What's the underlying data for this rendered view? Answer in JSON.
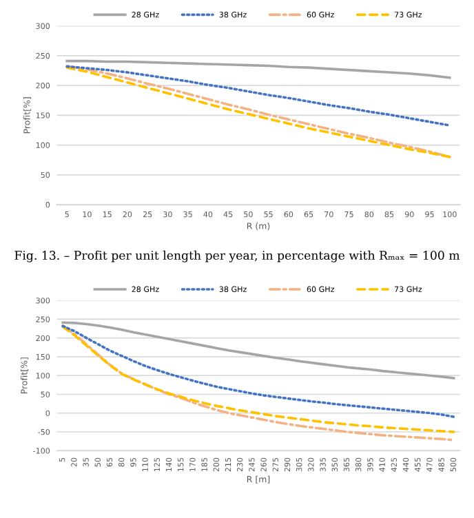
{
  "chart_data": [
    {
      "type": "line",
      "ylabel": "Profit[%]",
      "xlabel": "R (m)",
      "categories": [
        "5",
        "10",
        "15",
        "20",
        "25",
        "30",
        "35",
        "40",
        "45",
        "50",
        "55",
        "60",
        "65",
        "70",
        "75",
        "80",
        "85",
        "90",
        "95",
        "100"
      ],
      "ylim": [
        0,
        300
      ],
      "yticks": [
        0,
        50,
        100,
        150,
        200,
        250,
        300
      ],
      "grid": "y",
      "legend": "top",
      "annotations": [
        "Fig. 13. – Profit per unit length per year, in percentage with Rₘₐₓ = 100 m"
      ],
      "series": [
        {
          "name": "28 GHz",
          "color": "#a5a5a5",
          "line_style": "solid",
          "values": [
            241,
            241,
            240,
            240,
            239,
            238,
            237,
            236,
            235,
            234,
            233,
            231,
            230,
            228,
            226,
            224,
            222,
            220,
            217,
            213
          ]
        },
        {
          "name": "38 GHz",
          "color": "#4472c4",
          "line_style": "dotted",
          "values": [
            232,
            229,
            226,
            222,
            217,
            212,
            207,
            201,
            196,
            190,
            184,
            179,
            173,
            167,
            162,
            156,
            151,
            145,
            139,
            133
          ]
        },
        {
          "name": "60 GHz",
          "color": "#f4b183",
          "line_style": "dashdot",
          "values": [
            232,
            227,
            220,
            212,
            203,
            195,
            186,
            177,
            168,
            160,
            151,
            143,
            135,
            127,
            119,
            112,
            104,
            97,
            89,
            80
          ]
        },
        {
          "name": "73 GHz",
          "color": "#ffc000",
          "line_style": "dashed",
          "values": [
            230,
            223,
            214,
            205,
            196,
            187,
            178,
            169,
            160,
            152,
            144,
            136,
            128,
            121,
            114,
            107,
            100,
            93,
            87,
            80
          ]
        }
      ]
    },
    {
      "type": "line",
      "ylabel": "Profit[%]",
      "xlabel": "R [m]",
      "categories": [
        "5",
        "20",
        "35",
        "50",
        "65",
        "80",
        "95",
        "110",
        "125",
        "140",
        "155",
        "170",
        "185",
        "200",
        "215",
        "230",
        "245",
        "260",
        "275",
        "290",
        "305",
        "320",
        "335",
        "350",
        "365",
        "380",
        "395",
        "410",
        "425",
        "440",
        "455",
        "470",
        "485",
        "500"
      ],
      "ylim": [
        -100,
        300
      ],
      "yticks": [
        -100,
        -50,
        0,
        50,
        100,
        150,
        200,
        250,
        300
      ],
      "grid": "y",
      "legend": "top",
      "series": [
        {
          "name": "28 GHz",
          "color": "#a5a5a5",
          "line_style": "solid",
          "values": [
            241,
            240,
            237,
            233,
            228,
            222,
            215,
            209,
            203,
            197,
            191,
            185,
            179,
            173,
            167,
            162,
            157,
            152,
            147,
            143,
            138,
            134,
            130,
            126,
            122,
            119,
            116,
            112,
            109,
            106,
            103,
            100,
            97,
            93
          ]
        },
        {
          "name": "38 GHz",
          "color": "#4472c4",
          "line_style": "dotted",
          "values": [
            232,
            218,
            200,
            183,
            166,
            152,
            138,
            125,
            114,
            104,
            95,
            86,
            78,
            70,
            64,
            58,
            52,
            47,
            43,
            39,
            35,
            31,
            28,
            24,
            21,
            18,
            15,
            12,
            9,
            6,
            3,
            0,
            -4,
            -10
          ]
        },
        {
          "name": "60 GHz",
          "color": "#f4b183",
          "line_style": "dashdot",
          "values": [
            232,
            210,
            183,
            155,
            128,
            105,
            90,
            76,
            62,
            50,
            40,
            28,
            18,
            8,
            0,
            -6,
            -12,
            -18,
            -24,
            -29,
            -34,
            -38,
            -42,
            -46,
            -50,
            -53,
            -56,
            -59,
            -61,
            -63,
            -65,
            -67,
            -69,
            -72
          ]
        },
        {
          "name": "73 GHz",
          "color": "#ffc000",
          "line_style": "dashed",
          "values": [
            230,
            207,
            180,
            153,
            127,
            104,
            89,
            76,
            63,
            52,
            43,
            34,
            26,
            19,
            13,
            7,
            2,
            -3,
            -8,
            -12,
            -16,
            -20,
            -24,
            -27,
            -30,
            -33,
            -35,
            -38,
            -40,
            -42,
            -44,
            -46,
            -48,
            -50
          ]
        }
      ]
    }
  ]
}
